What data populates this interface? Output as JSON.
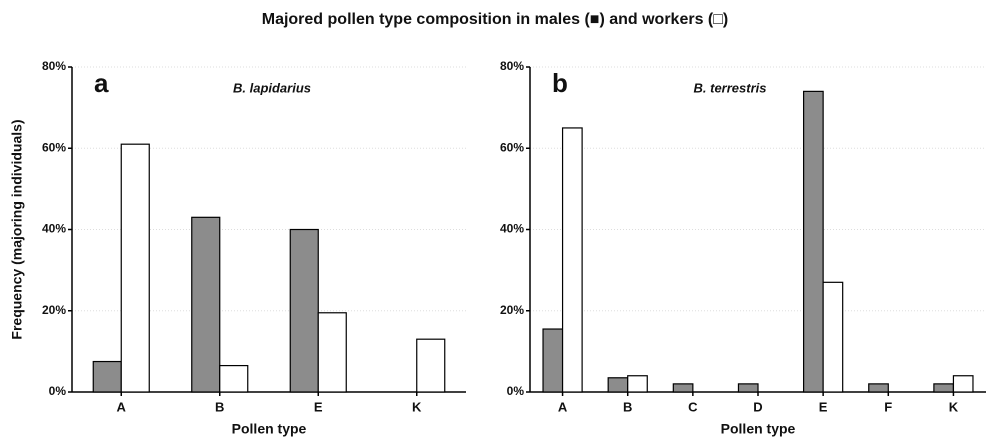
{
  "title": "Majored pollen type composition in males (■) and workers (□)",
  "chart_data": [
    {
      "type": "bar",
      "panel": "a",
      "subtitle": "B. lapidarius",
      "ylabel": "Frequency (majoring individuals)",
      "xlabel": "Pollen type",
      "categories": [
        "A",
        "B",
        "E",
        "K"
      ],
      "series": [
        {
          "color": "#8c8c8c",
          "values": [
            7.5,
            43,
            40,
            0
          ]
        },
        {
          "color": "#ffffff",
          "values": [
            61,
            6.5,
            19.5,
            13
          ]
        }
      ],
      "ylim": [
        0,
        80
      ],
      "yticks": [
        {
          "value": 0,
          "label": "0%"
        },
        {
          "value": 20,
          "label": "20%"
        },
        {
          "value": 40,
          "label": "40%"
        },
        {
          "value": 60,
          "label": "60%"
        },
        {
          "value": 80,
          "label": "80%"
        }
      ],
      "grid": true
    },
    {
      "type": "bar",
      "panel": "b",
      "subtitle": "B. terrestris",
      "xlabel": "Pollen type",
      "categories": [
        "A",
        "B",
        "C",
        "D",
        "E",
        "F",
        "K"
      ],
      "series": [
        {
          "color": "#8c8c8c",
          "values": [
            15.5,
            3.5,
            2,
            2,
            74,
            2,
            2
          ]
        },
        {
          "color": "#ffffff",
          "values": [
            65,
            4,
            0,
            0,
            27,
            0,
            4
          ]
        }
      ],
      "ylim": [
        0,
        80
      ],
      "yticks": [
        {
          "value": 0,
          "label": "0%"
        },
        {
          "value": 20,
          "label": "20%"
        },
        {
          "value": 40,
          "label": "40%"
        },
        {
          "value": 60,
          "label": "60%"
        },
        {
          "value": 80,
          "label": "80%"
        }
      ],
      "grid": true
    }
  ]
}
